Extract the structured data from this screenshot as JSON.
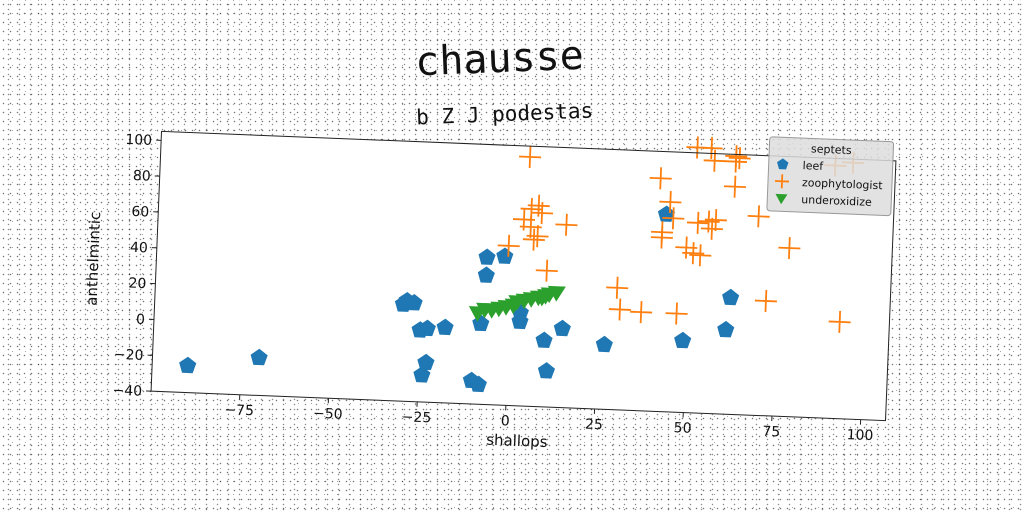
{
  "chart_data": {
    "type": "scatter",
    "title": "chausse",
    "subtitle": "b Z J podestas",
    "xlabel": "shallops",
    "ylabel": "anthelmintic",
    "xlim": [
      -100,
      107
    ],
    "ylim": [
      -40,
      105
    ],
    "xticks": [
      -75,
      -50,
      -25,
      0,
      25,
      50,
      75,
      100
    ],
    "yticks": [
      -40,
      -20,
      0,
      20,
      40,
      60,
      80,
      100
    ],
    "xtick_labels": [
      "−75",
      "−50",
      "−25",
      "0",
      "25",
      "50",
      "75",
      "100"
    ],
    "ytick_labels": [
      "−40",
      "−20",
      "0",
      "20",
      "40",
      "60",
      "80",
      "100"
    ],
    "grid": false,
    "legend": {
      "title": "septets",
      "placement": "top-right",
      "entries": [
        "leef",
        "zoophytologist",
        "underoxidize"
      ]
    },
    "series": [
      {
        "name": "leef",
        "marker": "pentagon",
        "color": "#1f77b4",
        "points": [
          [
            -90,
            -25
          ],
          [
            -70,
            -19
          ],
          [
            -30,
            14
          ],
          [
            -29,
            16
          ],
          [
            -27,
            15
          ],
          [
            -25,
            0
          ],
          [
            -23,
            1
          ],
          [
            -24,
            -25
          ],
          [
            -23,
            -18
          ],
          [
            -18,
            2
          ],
          [
            -10,
            -27
          ],
          [
            -8,
            -29
          ],
          [
            -7,
            42
          ],
          [
            -7,
            32
          ],
          [
            -2,
            43
          ],
          [
            -8,
            5
          ],
          [
            3,
            7
          ],
          [
            3,
            12
          ],
          [
            10,
            -3
          ],
          [
            11,
            -20
          ],
          [
            15,
            4
          ],
          [
            27,
            -4
          ],
          [
            43,
            70
          ],
          [
            49,
            0
          ],
          [
            61,
            7
          ],
          [
            62,
            25
          ]
        ]
      },
      {
        "name": "zoophytologist",
        "marker": "plus",
        "color": "#ff7f0e",
        "points": [
          [
            4,
            99
          ],
          [
            5,
            70
          ],
          [
            5,
            60
          ],
          [
            7,
            72
          ],
          [
            8,
            68
          ],
          [
            3,
            64
          ],
          [
            6,
            53
          ],
          [
            7,
            55
          ],
          [
            -1,
            49
          ],
          [
            10,
            36
          ],
          [
            15,
            62
          ],
          [
            30,
            28
          ],
          [
            31,
            16
          ],
          [
            37,
            15
          ],
          [
            41,
            90
          ],
          [
            42,
            60
          ],
          [
            42,
            57
          ],
          [
            44,
            77
          ],
          [
            45,
            68
          ],
          [
            47,
            15
          ],
          [
            49,
            52
          ],
          [
            51,
            49
          ],
          [
            52,
            66
          ],
          [
            53,
            48
          ],
          [
            55,
            67
          ],
          [
            56,
            63
          ],
          [
            57,
            68
          ],
          [
            51,
            108
          ],
          [
            55,
            108
          ],
          [
            56,
            101
          ],
          [
            62,
            104
          ],
          [
            62,
            101
          ],
          [
            63,
            103
          ],
          [
            62,
            87
          ],
          [
            69,
            71
          ],
          [
            72,
            24
          ],
          [
            78,
            54
          ],
          [
            90,
            101
          ],
          [
            93,
            14
          ],
          [
            95,
            103
          ]
        ]
      },
      {
        "name": "underoxidize",
        "marker": "triangle-down",
        "color": "#2ca02c",
        "points": [
          [
            -9,
            11
          ],
          [
            -7,
            13
          ],
          [
            -5,
            13
          ],
          [
            -3,
            14
          ],
          [
            -1,
            15
          ],
          [
            1,
            16
          ],
          [
            2,
            18
          ],
          [
            4,
            19
          ],
          [
            6,
            20
          ],
          [
            8,
            21
          ],
          [
            9,
            21
          ],
          [
            10,
            22
          ],
          [
            11,
            23
          ],
          [
            13,
            24
          ]
        ]
      }
    ]
  }
}
